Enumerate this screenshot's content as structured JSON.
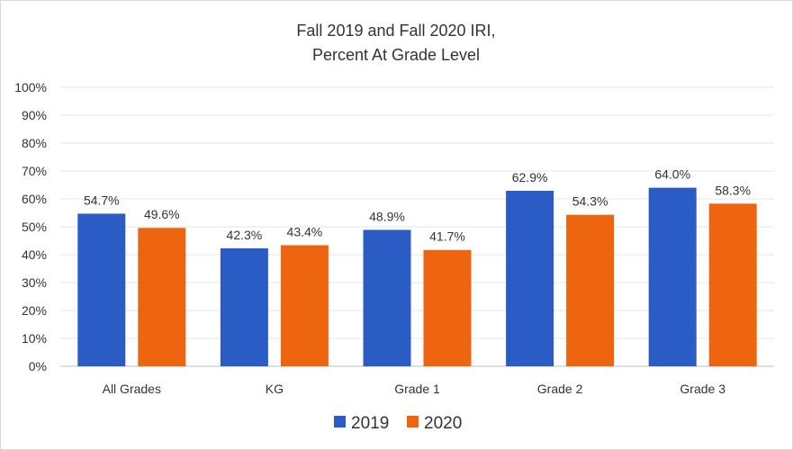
{
  "chart_data": {
    "type": "bar",
    "title": [
      "Fall 2019 and Fall 2020 IRI,",
      "Percent At Grade Level"
    ],
    "categories": [
      "All Grades",
      "KG",
      "Grade 1",
      "Grade 2",
      "Grade 3"
    ],
    "series": [
      {
        "name": "2019",
        "color": "#2B5CC6",
        "values": [
          54.7,
          42.3,
          48.9,
          62.9,
          64.0
        ],
        "labels": [
          "54.7%",
          "42.3%",
          "48.9%",
          "62.9%",
          "64.0%"
        ]
      },
      {
        "name": "2020",
        "color": "#EE650F",
        "values": [
          49.6,
          43.4,
          41.7,
          54.3,
          58.3
        ],
        "labels": [
          "49.6%",
          "43.4%",
          "41.7%",
          "54.3%",
          "58.3%"
        ]
      }
    ],
    "ylim": [
      0,
      100
    ],
    "yticks": [
      "0%",
      "10%",
      "20%",
      "30%",
      "40%",
      "50%",
      "60%",
      "70%",
      "80%",
      "90%",
      "100%"
    ],
    "grid": true,
    "legend": "bottom"
  }
}
